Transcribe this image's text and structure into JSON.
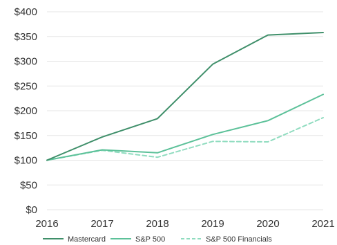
{
  "chart_data": {
    "type": "line",
    "title": "",
    "xlabel": "",
    "ylabel": "",
    "x": [
      "2016",
      "2017",
      "2018",
      "2019",
      "2020",
      "2021"
    ],
    "y_tick_labels": [
      "$0",
      "$50",
      "$100",
      "$150",
      "$200",
      "$250",
      "$300",
      "$350",
      "$400"
    ],
    "ylim": [
      0,
      400
    ],
    "grid": "horizontal",
    "legend_position": "bottom",
    "series": [
      {
        "name": "Mastercard",
        "values": [
          100,
          147,
          184,
          294,
          353,
          358
        ],
        "color": "#3f8f6a",
        "style": "solid"
      },
      {
        "name": "S&P 500",
        "values": [
          100,
          121,
          115,
          152,
          180,
          233
        ],
        "color": "#5cc199",
        "style": "solid"
      },
      {
        "name": "S&P 500 Financials",
        "values": [
          100,
          120,
          106,
          138,
          137,
          186
        ],
        "color": "#8fdcbf",
        "style": "dashed"
      }
    ]
  }
}
